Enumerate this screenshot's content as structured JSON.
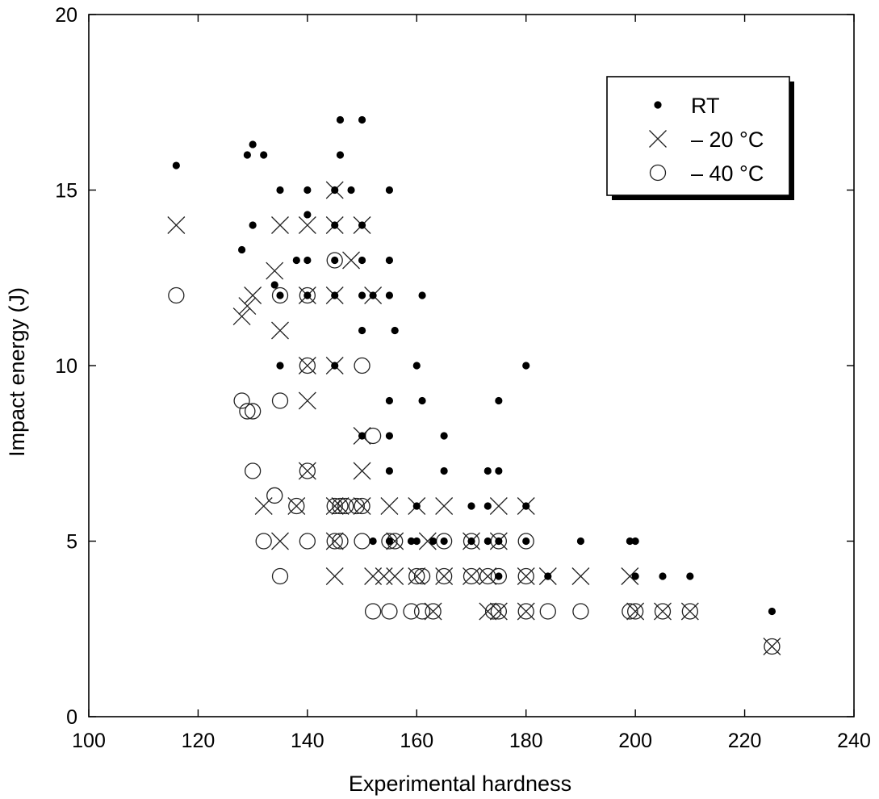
{
  "chart_data": {
    "type": "scatter",
    "title": "",
    "xlabel": "Experimental hardness",
    "ylabel": "Impact energy (J)",
    "xlim": [
      100,
      240
    ],
    "ylim": [
      0,
      20
    ],
    "xticks": [
      "100",
      "120",
      "140",
      "160",
      "180",
      "200",
      "220",
      "240"
    ],
    "yticks": [
      "0",
      "5",
      "10",
      "15",
      "20"
    ],
    "grid": false,
    "legend_position": "top-right",
    "series": [
      {
        "name": "RT",
        "marker": "dot",
        "points": [
          [
            116,
            15.7
          ],
          [
            129,
            16
          ],
          [
            130,
            16.3
          ],
          [
            132,
            16
          ],
          [
            130,
            14
          ],
          [
            128,
            13.3
          ],
          [
            134,
            12.3
          ],
          [
            135,
            15
          ],
          [
            135,
            12
          ],
          [
            135,
            10
          ],
          [
            138,
            13
          ],
          [
            140,
            15
          ],
          [
            140,
            14.3
          ],
          [
            140,
            13
          ],
          [
            140,
            12
          ],
          [
            145,
            15
          ],
          [
            145,
            14
          ],
          [
            145,
            13
          ],
          [
            145,
            12
          ],
          [
            145,
            10
          ],
          [
            146,
            17
          ],
          [
            146,
            16
          ],
          [
            148,
            15
          ],
          [
            150,
            17
          ],
          [
            150,
            14
          ],
          [
            150,
            13
          ],
          [
            150,
            12
          ],
          [
            150,
            11
          ],
          [
            150,
            8
          ],
          [
            152,
            12
          ],
          [
            152,
            5
          ],
          [
            155,
            15
          ],
          [
            155,
            13
          ],
          [
            155,
            12
          ],
          [
            155,
            9
          ],
          [
            155,
            8
          ],
          [
            155,
            7
          ],
          [
            155,
            5
          ],
          [
            156,
            11
          ],
          [
            159,
            5
          ],
          [
            160,
            10
          ],
          [
            160,
            6
          ],
          [
            160,
            5
          ],
          [
            161,
            12
          ],
          [
            161,
            9
          ],
          [
            163,
            5
          ],
          [
            165,
            8
          ],
          [
            165,
            7
          ],
          [
            165,
            5
          ],
          [
            170,
            6
          ],
          [
            170,
            5
          ],
          [
            173,
            7
          ],
          [
            173,
            6
          ],
          [
            173,
            5
          ],
          [
            175,
            9
          ],
          [
            175,
            7
          ],
          [
            175,
            5
          ],
          [
            175,
            4
          ],
          [
            180,
            10
          ],
          [
            180,
            6
          ],
          [
            180,
            5
          ],
          [
            184,
            4
          ],
          [
            190,
            5
          ],
          [
            199,
            5
          ],
          [
            200,
            5
          ],
          [
            200,
            4
          ],
          [
            205,
            4
          ],
          [
            210,
            4
          ],
          [
            225,
            3
          ]
        ]
      },
      {
        "name": "– 20 °C",
        "marker": "cross",
        "points": [
          [
            116,
            14
          ],
          [
            128,
            11.4
          ],
          [
            129,
            11.7
          ],
          [
            130,
            12
          ],
          [
            134,
            12.7
          ],
          [
            135,
            14
          ],
          [
            135,
            11
          ],
          [
            135,
            5
          ],
          [
            132,
            6
          ],
          [
            138,
            6
          ],
          [
            140,
            14
          ],
          [
            140,
            12
          ],
          [
            140,
            10
          ],
          [
            140,
            9
          ],
          [
            140,
            7
          ],
          [
            145,
            15
          ],
          [
            145,
            14
          ],
          [
            145,
            12
          ],
          [
            145,
            10
          ],
          [
            145,
            6
          ],
          [
            145,
            5
          ],
          [
            145,
            4
          ],
          [
            146,
            6
          ],
          [
            148,
            13
          ],
          [
            150,
            14
          ],
          [
            150,
            8
          ],
          [
            150,
            7
          ],
          [
            152,
            12
          ],
          [
            150,
            6
          ],
          [
            152,
            4
          ],
          [
            154,
            4
          ],
          [
            155,
            6
          ],
          [
            156,
            5
          ],
          [
            156,
            4
          ],
          [
            160,
            6
          ],
          [
            160,
            4
          ],
          [
            162,
            5
          ],
          [
            163,
            3
          ],
          [
            165,
            6
          ],
          [
            165,
            4
          ],
          [
            170,
            5
          ],
          [
            170,
            4
          ],
          [
            173,
            4
          ],
          [
            173,
            3
          ],
          [
            175,
            6
          ],
          [
            175,
            5
          ],
          [
            175,
            3
          ],
          [
            180,
            6
          ],
          [
            180,
            4
          ],
          [
            180,
            3
          ],
          [
            184,
            4
          ],
          [
            190,
            4
          ],
          [
            199,
            4
          ],
          [
            200,
            3
          ],
          [
            205,
            3
          ],
          [
            210,
            3
          ],
          [
            225,
            2
          ]
        ]
      },
      {
        "name": "– 40 °C",
        "marker": "circle",
        "points": [
          [
            116,
            12
          ],
          [
            128,
            9
          ],
          [
            129,
            8.7
          ],
          [
            130,
            8.7
          ],
          [
            130,
            7
          ],
          [
            132,
            5
          ],
          [
            134,
            6.3
          ],
          [
            135,
            12
          ],
          [
            135,
            9
          ],
          [
            135,
            4
          ],
          [
            138,
            6
          ],
          [
            140,
            12
          ],
          [
            140,
            10
          ],
          [
            140,
            7
          ],
          [
            140,
            5
          ],
          [
            145,
            13
          ],
          [
            145,
            6
          ],
          [
            146,
            6
          ],
          [
            146,
            5
          ],
          [
            145,
            5
          ],
          [
            147,
            6
          ],
          [
            149,
            6
          ],
          [
            150,
            10
          ],
          [
            150,
            6
          ],
          [
            150,
            5
          ],
          [
            152,
            8
          ],
          [
            152,
            3
          ],
          [
            155,
            5
          ],
          [
            155,
            3
          ],
          [
            156,
            5
          ],
          [
            159,
            3
          ],
          [
            160,
            4
          ],
          [
            161,
            4
          ],
          [
            161,
            3
          ],
          [
            163,
            3
          ],
          [
            165,
            5
          ],
          [
            165,
            4
          ],
          [
            170,
            5
          ],
          [
            170,
            4
          ],
          [
            173,
            4
          ],
          [
            174,
            3
          ],
          [
            175,
            5
          ],
          [
            175,
            4
          ],
          [
            175,
            3
          ],
          [
            180,
            5
          ],
          [
            180,
            4
          ],
          [
            180,
            3
          ],
          [
            184,
            3
          ],
          [
            190,
            3
          ],
          [
            199,
            3
          ],
          [
            200,
            3
          ],
          [
            205,
            3
          ],
          [
            210,
            3
          ],
          [
            225,
            2
          ]
        ]
      }
    ]
  }
}
